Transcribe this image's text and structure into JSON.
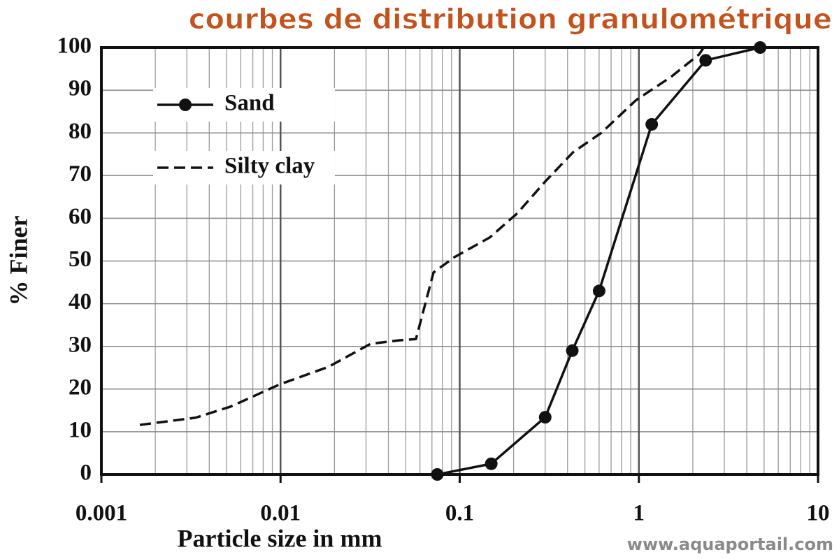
{
  "chart_data": {
    "type": "line",
    "title": "courbes de distribution granulométrique",
    "x_label": "Particle size in mm",
    "y_label": "% Finer",
    "watermark": "www.aquaportail.com",
    "xscale": "log",
    "grid": true,
    "legend": "upper left",
    "xlim": [
      0.001,
      10
    ],
    "ylim": [
      0,
      100
    ],
    "xticks": [
      0.001,
      0.01,
      0.1,
      1,
      10
    ],
    "xminorticks": [
      0.002,
      0.003,
      0.004,
      0.005,
      0.006,
      0.007,
      0.008,
      0.009,
      0.02,
      0.03,
      0.04,
      0.05,
      0.06,
      0.07,
      0.08,
      0.09,
      0.2,
      0.3,
      0.4,
      0.5,
      0.6,
      0.7,
      0.8,
      0.9,
      2,
      3,
      4,
      5,
      6,
      7,
      8,
      9
    ],
    "yticks": [
      0,
      10,
      20,
      30,
      40,
      50,
      60,
      70,
      80,
      90,
      100
    ],
    "series": [
      {
        "name": "Sand",
        "color": "#111111",
        "dashed": false,
        "markers": true,
        "x": [
          0.075,
          0.15,
          0.3,
          0.425,
          0.6,
          1.18,
          2.36,
          4.75
        ],
        "values": [
          0,
          2.5,
          13.4,
          29,
          43,
          82,
          97,
          100
        ]
      },
      {
        "name": "Silty clay",
        "color": "#111111",
        "dashed": true,
        "markers": false,
        "x": [
          0.00164,
          0.00336,
          0.00527,
          0.0099,
          0.0185,
          0.0318,
          0.0456,
          0.057,
          0.0714,
          0.0935,
          0.147,
          0.21,
          0.3,
          0.43,
          0.617,
          0.966,
          1.51,
          2.17,
          2.3
        ],
        "values": [
          11.6,
          13.3,
          15.9,
          21.1,
          25.2,
          30.6,
          31.4,
          31.7,
          47.3,
          50.9,
          55.5,
          61.2,
          68.6,
          75.5,
          80,
          87.7,
          93.1,
          98.4,
          100
        ]
      }
    ]
  }
}
